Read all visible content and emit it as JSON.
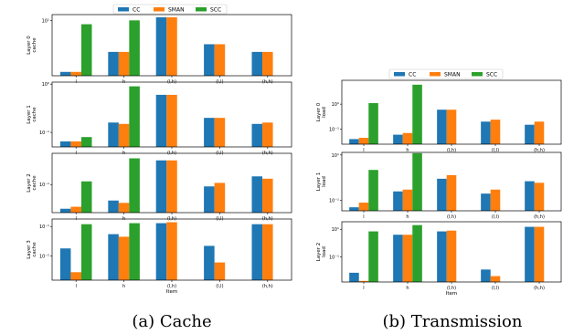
{
  "colors": {
    "CC": "#1f77b4",
    "SMAN": "#ff7f0e",
    "SCC": "#2ca02c"
  },
  "legend": [
    "CC",
    "SMAN",
    "SCC"
  ],
  "captions": [
    "(a) Cache",
    "(b) Transmission"
  ],
  "chart_data": [
    {
      "type": "bar",
      "group": "a",
      "ylabel": "Layer 0 cache",
      "xlabel": "",
      "yscale": "log",
      "categories": [
        "l",
        "h",
        "(l,h)",
        "(l,l)",
        "(h,h)"
      ],
      "ylim": [
        0.4,
        14
      ],
      "ytick_labels": [
        "10¹"
      ],
      "yticks": [
        10
      ],
      "series": [
        {
          "name": "CC",
          "values": [
            0.5,
            1.6,
            12,
            2.5,
            1.6
          ]
        },
        {
          "name": "SMAN",
          "values": [
            0.5,
            1.6,
            12,
            2.5,
            1.6
          ]
        },
        {
          "name": "SCC",
          "values": [
            8,
            10,
            null,
            null,
            null
          ]
        }
      ]
    },
    {
      "type": "bar",
      "group": "a",
      "ylabel": "Layer 1 cache",
      "xlabel": "",
      "yscale": "log",
      "categories": [
        "l",
        "h",
        "(l,h)",
        "(l,l)",
        "(h,h)"
      ],
      "ylim": [
        0.05,
        1.1
      ],
      "ytick_labels": [
        "10⁰",
        "10⁻¹"
      ],
      "yticks": [
        1,
        0.1
      ],
      "series": [
        {
          "name": "CC",
          "values": [
            0.065,
            0.16,
            0.6,
            0.2,
            0.15
          ]
        },
        {
          "name": "SMAN",
          "values": [
            0.065,
            0.15,
            0.6,
            0.2,
            0.16
          ]
        },
        {
          "name": "SCC",
          "values": [
            0.08,
            0.9,
            null,
            null,
            null
          ]
        }
      ]
    },
    {
      "type": "bar",
      "group": "a",
      "ylabel": "Layer 2 cache",
      "xlabel": "",
      "yscale": "log",
      "categories": [
        "l",
        "h",
        "(l,h)",
        "(l,l)",
        "(h,h)"
      ],
      "ylim": [
        0.02,
        0.6
      ],
      "ytick_labels": [
        "10⁻¹"
      ],
      "yticks": [
        0.1
      ],
      "series": [
        {
          "name": "CC",
          "values": [
            0.025,
            0.04,
            0.4,
            0.09,
            0.16
          ]
        },
        {
          "name": "SMAN",
          "values": [
            0.028,
            0.035,
            0.4,
            0.11,
            0.14
          ]
        },
        {
          "name": "SCC",
          "values": [
            0.12,
            0.45,
            null,
            null,
            null
          ]
        }
      ]
    },
    {
      "type": "bar",
      "group": "a",
      "ylabel": "Layer 3 cache",
      "xlabel": "Item",
      "yscale": "log",
      "categories": [
        "l",
        "h",
        "(l,h)",
        "(l,l)",
        "(h,h)"
      ],
      "ylim": [
        0.0015,
        0.18
      ],
      "ytick_labels": [
        "10⁻¹",
        "10⁻²"
      ],
      "yticks": [
        0.1,
        0.01
      ],
      "series": [
        {
          "name": "CC",
          "values": [
            0.018,
            0.055,
            0.13,
            0.022,
            0.12
          ]
        },
        {
          "name": "SMAN",
          "values": [
            0.0028,
            0.045,
            0.14,
            0.006,
            0.12
          ]
        },
        {
          "name": "SCC",
          "values": [
            0.12,
            0.13,
            null,
            null,
            null
          ]
        }
      ]
    },
    {
      "type": "bar",
      "group": "b",
      "ylabel": "Layer 0 load",
      "xlabel": "",
      "yscale": "log",
      "categories": [
        "l",
        "h",
        "(l,h)",
        "(l,l)",
        "(h,h)"
      ],
      "ylim": [
        0.025,
        9
      ],
      "ytick_labels": [
        "10⁰",
        "10⁻¹"
      ],
      "yticks": [
        1,
        0.1
      ],
      "series": [
        {
          "name": "CC",
          "values": [
            0.04,
            0.06,
            0.6,
            0.2,
            0.15
          ]
        },
        {
          "name": "SMAN",
          "values": [
            0.045,
            0.07,
            0.6,
            0.24,
            0.2
          ]
        },
        {
          "name": "SCC",
          "values": [
            1.1,
            6,
            null,
            null,
            null
          ]
        }
      ]
    },
    {
      "type": "bar",
      "group": "b",
      "ylabel": "Layer 1 load",
      "xlabel": "",
      "yscale": "log",
      "categories": [
        "l",
        "h",
        "(l,h)",
        "(l,l)",
        "(h,h)"
      ],
      "ylim": [
        0.035,
        13
      ],
      "ytick_labels": [
        "10¹",
        "10⁻¹"
      ],
      "yticks": [
        10,
        0.1
      ],
      "series": [
        {
          "name": "CC",
          "values": [
            0.05,
            0.25,
            0.9,
            0.2,
            0.7
          ]
        },
        {
          "name": "SMAN",
          "values": [
            0.08,
            0.3,
            1.3,
            0.3,
            0.6
          ]
        },
        {
          "name": "SCC",
          "values": [
            2.2,
            12,
            null,
            null,
            null
          ]
        }
      ]
    },
    {
      "type": "bar",
      "group": "b",
      "ylabel": "Layer 2 load",
      "xlabel": "Item",
      "yscale": "log",
      "categories": [
        "l",
        "h",
        "(l,h)",
        "(l,l)",
        "(h,h)"
      ],
      "ylim": [
        0.0015,
        35
      ],
      "ytick_labels": [
        "10¹",
        "10⁻¹"
      ],
      "yticks": [
        10,
        0.1
      ],
      "series": [
        {
          "name": "CC",
          "values": [
            0.007,
            4,
            7,
            0.012,
            15
          ]
        },
        {
          "name": "SMAN",
          "values": [
            0.0018,
            4,
            8,
            0.004,
            15
          ]
        },
        {
          "name": "SCC",
          "values": [
            7,
            20,
            null,
            null,
            null
          ]
        }
      ]
    }
  ]
}
